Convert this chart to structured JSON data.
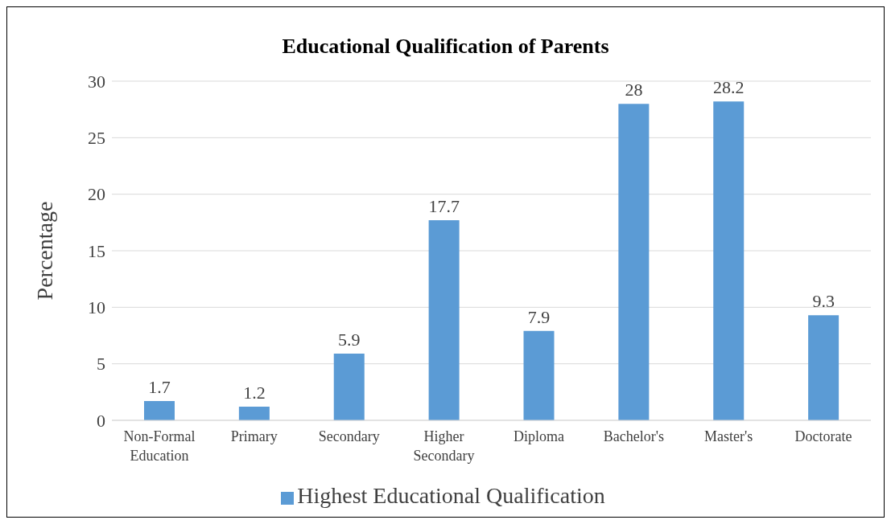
{
  "chart_data": {
    "type": "bar",
    "title": "Educational Qualification of Parents",
    "ylabel": "Percentage",
    "categories": [
      "Non-Formal Education",
      "Primary",
      "Secondary",
      "Higher Secondary",
      "Diploma",
      "Bachelor's",
      "Master's",
      "Doctorate"
    ],
    "series": [
      {
        "name": "Highest Educational Qualification",
        "color": "#5b9bd5",
        "values": [
          1.7,
          1.2,
          5.9,
          17.7,
          7.9,
          28,
          28.2,
          9.3
        ]
      }
    ],
    "ylim": [
      0,
      30
    ],
    "yticks": [
      0,
      5,
      10,
      15,
      20,
      25,
      30
    ],
    "grid": "y",
    "legend": "bottom",
    "data_labels": true
  }
}
